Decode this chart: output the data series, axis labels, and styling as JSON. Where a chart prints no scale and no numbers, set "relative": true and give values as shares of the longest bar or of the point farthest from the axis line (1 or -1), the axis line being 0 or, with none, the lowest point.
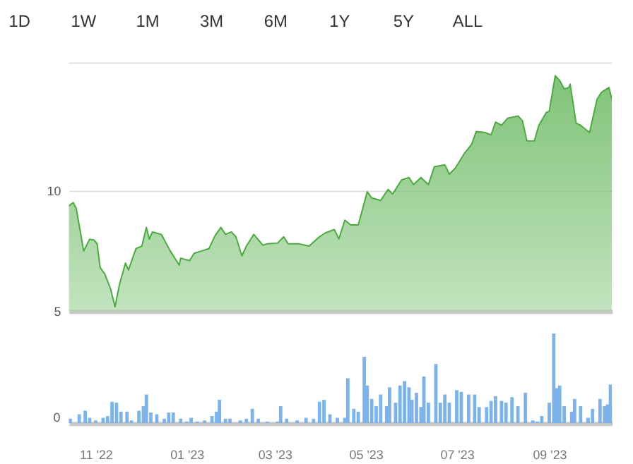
{
  "chart_data": [
    {
      "type": "area",
      "annotations": [
        "1D",
        "1W",
        "1M",
        "3M",
        "6M",
        "1Y",
        "5Y",
        "ALL"
      ],
      "x": [
        "2022-10-14",
        "2022-10-17",
        "2022-10-19",
        "2022-10-24",
        "2022-10-28",
        "2022-10-31",
        "2022-11-02",
        "2022-11-04",
        "2022-11-07",
        "2022-11-11",
        "2022-11-14",
        "2022-11-17",
        "2022-11-21",
        "2022-11-23",
        "2022-11-28",
        "2022-12-02",
        "2022-12-05",
        "2022-12-07",
        "2022-12-09",
        "2022-12-15",
        "2022-12-21",
        "2022-12-27",
        "2022-12-28",
        "2023-01-03",
        "2023-01-06",
        "2023-01-11",
        "2023-01-16",
        "2023-01-20",
        "2023-01-24",
        "2023-01-27",
        "2023-01-31",
        "2023-02-03",
        "2023-02-07",
        "2023-02-10",
        "2023-02-15",
        "2023-02-21",
        "2023-02-24",
        "2023-03-03",
        "2023-03-07",
        "2023-03-10",
        "2023-03-17",
        "2023-03-24",
        "2023-03-31",
        "2023-04-04",
        "2023-04-10",
        "2023-04-13",
        "2023-04-17",
        "2023-04-21",
        "2023-04-26",
        "2023-05-02",
        "2023-05-05",
        "2023-05-11",
        "2023-05-16",
        "2023-05-19",
        "2023-05-25",
        "2023-05-30",
        "2023-06-02",
        "2023-06-07",
        "2023-06-12",
        "2023-06-16",
        "2023-06-23",
        "2023-06-26",
        "2023-06-30",
        "2023-07-06",
        "2023-07-11",
        "2023-07-14",
        "2023-07-20",
        "2023-07-24",
        "2023-07-27",
        "2023-07-31",
        "2023-08-04",
        "2023-08-11",
        "2023-08-14",
        "2023-08-17",
        "2023-08-22",
        "2023-08-25",
        "2023-08-30",
        "2023-09-01",
        "2023-09-05",
        "2023-09-08",
        "2023-09-11",
        "2023-09-14",
        "2023-09-15",
        "2023-09-19",
        "2023-09-22",
        "2023-09-28",
        "2023-10-03",
        "2023-10-06",
        "2023-10-11",
        "2023-10-13"
      ],
      "series": [
        {
          "color": "#4aaa3e",
          "values": [
            9.37,
            9.51,
            9.27,
            7.5,
            7.99,
            7.95,
            7.8,
            6.81,
            6.56,
            5.93,
            5.18,
            6.12,
            7.0,
            6.71,
            7.6,
            7.7,
            8.48,
            7.99,
            8.29,
            8.19,
            7.5,
            6.91,
            7.2,
            7.1,
            7.4,
            7.5,
            7.6,
            8.13,
            8.48,
            8.19,
            8.29,
            8.09,
            7.3,
            7.7,
            8.19,
            7.74,
            7.8,
            7.83,
            8.09,
            7.8,
            7.8,
            7.7,
            8.09,
            8.25,
            8.39,
            8.0,
            8.78,
            8.58,
            8.58,
            9.96,
            9.7,
            9.6,
            10.06,
            9.86,
            10.45,
            10.55,
            10.26,
            10.55,
            10.26,
            11.0,
            11.08,
            10.69,
            10.94,
            11.54,
            11.93,
            12.46,
            12.42,
            12.32,
            12.85,
            12.72,
            13.01,
            13.11,
            12.91,
            12.07,
            12.07,
            12.72,
            13.25,
            13.31,
            14.78,
            14.58,
            14.23,
            14.29,
            14.43,
            12.81,
            12.72,
            12.42,
            13.8,
            14.09,
            14.29,
            13.8
          ]
        }
      ],
      "xlim": [
        "2022-10-14",
        "2023-10-13"
      ],
      "ylim": [
        5,
        15.3
      ],
      "yticks": [
        5,
        10
      ],
      "grid": "y",
      "tick_labels": "y"
    },
    {
      "type": "bar",
      "relative": true,
      "annotations": [
        "0"
      ],
      "x": [
        "2022-10-15",
        "2022-10-21",
        "2022-10-25",
        "2022-10-28",
        "2022-11-01",
        "2022-11-06",
        "2022-11-09",
        "2022-11-12",
        "2022-11-15",
        "2022-11-18",
        "2022-11-22",
        "2022-11-25",
        "2022-11-30",
        "2022-12-03",
        "2022-12-05",
        "2022-12-08",
        "2022-12-12",
        "2022-12-17",
        "2022-12-20",
        "2022-12-23",
        "2022-12-28",
        "2023-01-01",
        "2023-01-04",
        "2023-01-08",
        "2023-01-13",
        "2023-01-18",
        "2023-01-21",
        "2023-01-23",
        "2023-01-27",
        "2023-01-30",
        "2023-02-06",
        "2023-02-10",
        "2023-02-14",
        "2023-02-18",
        "2023-02-24",
        "2023-03-03",
        "2023-03-05",
        "2023-03-09",
        "2023-03-16",
        "2023-03-22",
        "2023-03-27",
        "2023-03-31",
        "2023-04-03",
        "2023-04-07",
        "2023-04-12",
        "2023-04-17",
        "2023-04-19",
        "2023-04-23",
        "2023-04-26",
        "2023-04-30",
        "2023-05-02",
        "2023-05-05",
        "2023-05-08",
        "2023-05-11",
        "2023-05-15",
        "2023-05-17",
        "2023-05-21",
        "2023-05-24",
        "2023-05-27",
        "2023-05-30",
        "2023-06-01",
        "2023-06-04",
        "2023-06-07",
        "2023-06-09",
        "2023-06-12",
        "2023-06-17",
        "2023-06-20",
        "2023-06-23",
        "2023-06-26",
        "2023-07-01",
        "2023-07-04",
        "2023-07-09",
        "2023-07-13",
        "2023-07-16",
        "2023-07-21",
        "2023-07-24",
        "2023-07-27",
        "2023-07-31",
        "2023-08-03",
        "2023-08-07",
        "2023-08-11",
        "2023-08-16",
        "2023-08-21",
        "2023-08-24",
        "2023-08-27",
        "2023-09-01",
        "2023-09-04",
        "2023-09-06",
        "2023-09-08",
        "2023-09-11",
        "2023-09-16",
        "2023-09-18",
        "2023-09-22",
        "2023-09-27",
        "2023-09-30",
        "2023-10-05",
        "2023-10-08",
        "2023-10-10",
        "2023-10-12",
        "2023-10-13"
      ],
      "series": [
        {
          "color": "#7cb3ea",
          "values": [
            0.05,
            0.1,
            0.14,
            0.06,
            0.03,
            0.06,
            0.08,
            0.24,
            0.23,
            0.13,
            0.13,
            0.03,
            0.14,
            0.19,
            0.32,
            0.12,
            0.1,
            0.05,
            0.12,
            0.12,
            0.05,
            0.02,
            0.06,
            0.02,
            0.03,
            0.08,
            0.13,
            0.26,
            0.05,
            0.05,
            0.03,
            0.05,
            0.16,
            0.05,
            0.02,
            0.02,
            0.19,
            0.05,
            0.03,
            0.06,
            0.05,
            0.24,
            0.26,
            0.1,
            0.06,
            0.06,
            0.5,
            0.16,
            0.13,
            0.74,
            0.42,
            0.27,
            0.19,
            0.32,
            0.19,
            0.4,
            0.23,
            0.42,
            0.47,
            0.4,
            0.26,
            0.34,
            0.18,
            0.52,
            0.23,
            0.66,
            0.23,
            0.32,
            0.23,
            0.37,
            0.35,
            0.32,
            0.32,
            0.18,
            0.18,
            0.25,
            0.3,
            0.25,
            0.23,
            0.29,
            0.19,
            0.34,
            0.03,
            0.02,
            0.08,
            0.23,
            1.0,
            0.39,
            0.42,
            0.19,
            0.13,
            0.27,
            0.19,
            0.06,
            0.16,
            0.27,
            0.19,
            0.21,
            0.43,
            0.19
          ]
        }
      ],
      "xlim": [
        "2022-10-14",
        "2023-10-13"
      ],
      "xticks": [
        {
          "value": "2022-11-01",
          "label": "11 '22"
        },
        {
          "value": "2023-01-01",
          "label": "01 '23"
        },
        {
          "value": "2023-03-01",
          "label": "03 '23"
        },
        {
          "value": "2023-05-01",
          "label": "05 '23"
        },
        {
          "value": "2023-07-01",
          "label": "07 '23"
        },
        {
          "value": "2023-09-01",
          "label": "09 '23"
        }
      ],
      "tick_labels": "x"
    }
  ]
}
